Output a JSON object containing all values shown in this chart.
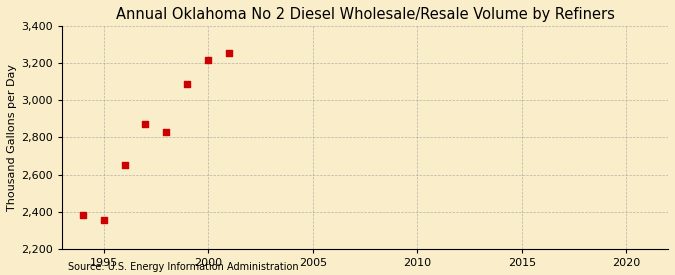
{
  "title": "Annual Oklahoma No 2 Diesel Wholesale/Resale Volume by Refiners",
  "ylabel": "Thousand Gallons per Day",
  "source": "Source: U.S. Energy Information Administration",
  "x_data": [
    1994,
    1995,
    1996,
    1997,
    1998,
    1999,
    2000,
    2001
  ],
  "y_data": [
    2385,
    2355,
    2650,
    2870,
    2830,
    3090,
    3215,
    3255
  ],
  "xlim": [
    1993,
    2022
  ],
  "ylim": [
    2200,
    3400
  ],
  "xticks": [
    1995,
    2000,
    2005,
    2010,
    2015,
    2020
  ],
  "yticks": [
    2200,
    2400,
    2600,
    2800,
    3000,
    3200,
    3400
  ],
  "marker_color": "#cc0000",
  "marker_size": 4,
  "bg_color": "#faeeca",
  "grid_color": "#999999",
  "title_fontsize": 10.5,
  "label_fontsize": 8,
  "tick_fontsize": 8,
  "source_fontsize": 7
}
